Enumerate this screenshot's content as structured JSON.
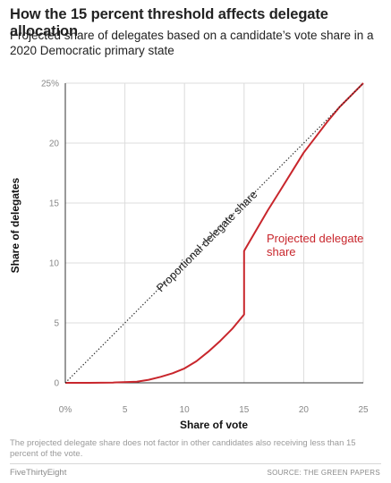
{
  "header": {
    "title": "How the 15 percent threshold affects delegate allocation",
    "subtitle": "Projected share of delegates based on a candidate’s vote share in a 2020 Democratic primary state"
  },
  "chart_data": {
    "type": "line",
    "title": "How the 15 percent threshold affects delegate allocation",
    "subtitle": "Projected share of delegates based on a candidate’s vote share in a 2020 Democratic primary state",
    "xlabel": "Share of vote",
    "ylabel": "Share of delegates",
    "xlim": [
      0,
      25
    ],
    "ylim": [
      0,
      25
    ],
    "x_ticks": [
      0,
      5,
      10,
      15,
      20,
      25
    ],
    "x_tick_labels": [
      "0%",
      "5",
      "10",
      "15",
      "20",
      "25"
    ],
    "y_ticks": [
      0,
      5,
      10,
      15,
      20,
      25
    ],
    "y_tick_labels": [
      "0",
      "5",
      "10",
      "15",
      "20",
      "25%"
    ],
    "grid": true,
    "series": [
      {
        "name": "Projected delegate share",
        "color": "#c8262c",
        "style": "solid",
        "x": [
          0,
          2,
          4,
          6,
          7,
          8,
          9,
          10,
          11,
          12,
          13,
          14,
          15,
          15,
          16,
          17,
          18,
          19,
          20,
          21,
          22,
          23,
          24,
          25
        ],
        "y": [
          0,
          0,
          0.02,
          0.1,
          0.25,
          0.5,
          0.8,
          1.2,
          1.8,
          2.6,
          3.5,
          4.5,
          5.7,
          11.0,
          12.7,
          14.4,
          16.0,
          17.6,
          19.2,
          20.5,
          21.8,
          23.0,
          24.0,
          25.0
        ]
      },
      {
        "name": "Proportional delegate share",
        "color": "#222222",
        "style": "dotted",
        "x": [
          0,
          25
        ],
        "y": [
          0,
          25
        ]
      }
    ],
    "annotations": [
      {
        "text_lines": [
          "Projected delegate",
          "share"
        ],
        "color": "#c8262c"
      },
      {
        "text_lines": [
          "Proportional delegate share"
        ],
        "color": "#222222"
      }
    ]
  },
  "footnote": "The projected delegate share does not factor in other candidates also receiving less than 15 percent of the vote.",
  "footer": {
    "brand": "FiveThirtyEight",
    "source": "SOURCE: THE GREEN PAPERS"
  }
}
